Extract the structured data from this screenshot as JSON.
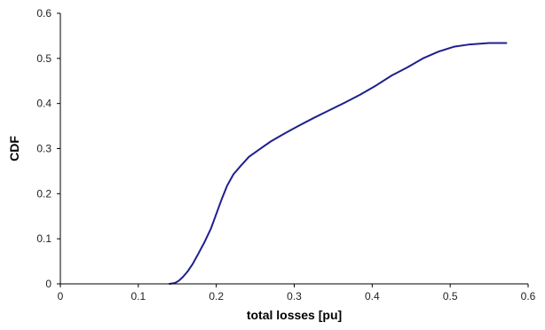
{
  "chart_data": {
    "type": "line",
    "title": "",
    "xlabel": "total losses [pu]",
    "ylabel": "CDF",
    "xlim": [
      0,
      0.6
    ],
    "ylim": [
      0,
      0.6
    ],
    "x_ticks": [
      "0",
      "0.1",
      "0.2",
      "0.3",
      "0.4",
      "0.5",
      "0.6"
    ],
    "y_ticks": [
      "0",
      "0.1",
      "0.2",
      "0.3",
      "0.4",
      "0.5",
      "0.6"
    ],
    "grid": false,
    "legend": "none",
    "series": [
      {
        "color": "#1f1f8f",
        "x": [
          0.14,
          0.147,
          0.152,
          0.157,
          0.163,
          0.17,
          0.177,
          0.185,
          0.193,
          0.2,
          0.207,
          0.214,
          0.222,
          0.232,
          0.242,
          0.255,
          0.27,
          0.287,
          0.305,
          0.325,
          0.345,
          0.365,
          0.385,
          0.405,
          0.425,
          0.445,
          0.465,
          0.485,
          0.505,
          0.525,
          0.55,
          0.572
        ],
        "y": [
          0.0,
          0.002,
          0.007,
          0.015,
          0.027,
          0.045,
          0.067,
          0.093,
          0.122,
          0.155,
          0.188,
          0.218,
          0.243,
          0.263,
          0.282,
          0.298,
          0.316,
          0.333,
          0.35,
          0.368,
          0.385,
          0.402,
          0.42,
          0.44,
          0.462,
          0.48,
          0.5,
          0.515,
          0.526,
          0.531,
          0.534,
          0.534
        ]
      }
    ]
  }
}
